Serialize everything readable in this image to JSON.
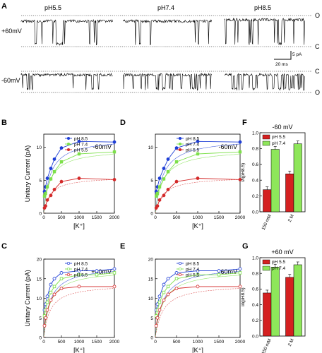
{
  "figure": {
    "panel_letters": [
      "A",
      "B",
      "C",
      "D",
      "E",
      "F",
      "G"
    ]
  },
  "traces": {
    "panel_letter": "A",
    "columns": [
      "pH5.5",
      "pH7.4",
      "pH8.5"
    ],
    "rows": [
      "+60mV",
      "-60mV"
    ],
    "row_state_labels": [
      [
        "O",
        "C"
      ],
      [
        "C",
        "O"
      ]
    ],
    "scalebar": {
      "amplitude": "5 pA",
      "time": "20 ms"
    }
  },
  "chart_data": [
    {
      "panel": "B",
      "type": "scatter",
      "voltage": "-60mV",
      "xlabel": "[K⁺]",
      "ylabel": "Unitary Current (pA)",
      "xlim": [
        0,
        2000
      ],
      "ylim": [
        0,
        12
      ],
      "xticks": [
        "0",
        "500",
        "1000",
        "1500",
        "2000"
      ],
      "yticks": [
        "0",
        "5",
        "10"
      ],
      "legend_position": "top-left",
      "marker": "filled",
      "series": [
        {
          "name": "pH 8.5",
          "color": "#1f3fd6",
          "x": [
            20,
            50,
            100,
            200,
            300,
            500,
            1000,
            2000
          ],
          "y": [
            3.3,
            4.0,
            5.3,
            6.8,
            8.2,
            9.9,
            10.9,
            10.8
          ]
        },
        {
          "name": "pH 7.4",
          "color": "#7de04a",
          "x": [
            20,
            50,
            100,
            200,
            300,
            500,
            1000,
            2000
          ],
          "y": [
            2.6,
            3.0,
            4.0,
            5.2,
            6.3,
            7.8,
            9.0,
            9.3
          ]
        },
        {
          "name": "pH 5.5",
          "color": "#d42a2a",
          "x": [
            20,
            50,
            100,
            200,
            300,
            500,
            1000,
            2000
          ],
          "y": [
            0.8,
            1.1,
            2.0,
            2.7,
            3.6,
            4.8,
            5.3,
            5.1
          ]
        }
      ]
    },
    {
      "panel": "D",
      "type": "scatter",
      "voltage": "-60mV",
      "xlabel": "[K⁺]",
      "ylabel": "",
      "xlim": [
        0,
        2000
      ],
      "ylim": [
        0,
        12
      ],
      "xticks": [
        "0",
        "500",
        "1000",
        "1500",
        "2000"
      ],
      "yticks": [
        "0",
        "5",
        "10"
      ],
      "legend_position": "top-left",
      "marker": "filled",
      "series": [
        {
          "name": "pH 8.5",
          "color": "#1f3fd6",
          "x": [
            20,
            50,
            100,
            200,
            300,
            500,
            1000,
            2000
          ],
          "y": [
            3.3,
            4.0,
            5.3,
            6.8,
            8.2,
            9.9,
            10.9,
            10.8
          ]
        },
        {
          "name": "pH 7.4",
          "color": "#7de04a",
          "x": [
            20,
            50,
            100,
            200,
            300,
            500,
            1000,
            2000
          ],
          "y": [
            2.6,
            3.0,
            4.0,
            5.2,
            6.3,
            7.8,
            9.0,
            9.3
          ]
        },
        {
          "name": "pH 5.5",
          "color": "#d42a2a",
          "x": [
            20,
            50,
            100,
            200,
            300,
            500,
            1000,
            2000
          ],
          "y": [
            0.8,
            1.1,
            2.0,
            2.7,
            3.6,
            4.8,
            5.3,
            5.1
          ]
        }
      ]
    },
    {
      "panel": "C",
      "type": "scatter",
      "voltage": "+60mV",
      "xlabel": "[K⁺]",
      "ylabel": "Unitary Current (pA)",
      "xlim": [
        0,
        2000
      ],
      "ylim": [
        0,
        20
      ],
      "xticks": [
        "0",
        "500",
        "1000",
        "1500",
        "2000"
      ],
      "yticks": [
        "0",
        "5",
        "10",
        "15",
        "20"
      ],
      "legend_position": "top-left",
      "marker": "open",
      "series": [
        {
          "name": "pH 8.5",
          "color": "#1f3fd6",
          "x": [
            20,
            50,
            100,
            200,
            300,
            500,
            1000,
            1500,
            2000
          ],
          "y": [
            7.0,
            8.5,
            10.5,
            13.5,
            15.0,
            16.5,
            17.0,
            17.0,
            17.5
          ]
        },
        {
          "name": "pH 7.4",
          "color": "#7de04a",
          "x": [
            20,
            50,
            100,
            200,
            300,
            500,
            1000,
            1500,
            2000
          ],
          "y": [
            5.5,
            7.0,
            9.0,
            11.5,
            13.0,
            15.0,
            16.0,
            16.0,
            16.5
          ]
        },
        {
          "name": "pH 5.5",
          "color": "#d42a2a",
          "x": [
            20,
            50,
            100,
            200,
            300,
            500,
            1000,
            2000
          ],
          "y": [
            3.0,
            5.0,
            7.0,
            9.5,
            11.0,
            12.5,
            13.0,
            13.0
          ]
        }
      ]
    },
    {
      "panel": "E",
      "type": "scatter",
      "voltage": "+60mV",
      "xlabel": "[K⁺]",
      "ylabel": "",
      "xlim": [
        0,
        2000
      ],
      "ylim": [
        0,
        20
      ],
      "xticks": [
        "0",
        "500",
        "1000",
        "1500",
        "2000"
      ],
      "yticks": [
        "0",
        "5",
        "10",
        "15",
        "20"
      ],
      "legend_position": "top-left",
      "marker": "open",
      "series": [
        {
          "name": "pH 8.5",
          "color": "#1f3fd6",
          "x": [
            20,
            50,
            100,
            200,
            300,
            500,
            1000,
            1500,
            2000
          ],
          "y": [
            7.0,
            8.5,
            10.5,
            13.5,
            15.0,
            16.5,
            17.0,
            17.0,
            17.5
          ]
        },
        {
          "name": "pH 7.4",
          "color": "#7de04a",
          "x": [
            20,
            50,
            100,
            200,
            300,
            500,
            1000,
            1500,
            2000
          ],
          "y": [
            5.5,
            7.0,
            9.0,
            11.5,
            13.0,
            15.0,
            16.0,
            16.0,
            16.5
          ]
        },
        {
          "name": "pH 5.5",
          "color": "#d42a2a",
          "x": [
            20,
            50,
            100,
            200,
            300,
            500,
            1000,
            2000
          ],
          "y": [
            3.0,
            5.0,
            7.0,
            9.5,
            11.0,
            12.5,
            13.0,
            13.0
          ]
        }
      ]
    },
    {
      "panel": "F",
      "type": "bar",
      "title": "-60 mV",
      "ylabel": "i/i(pH8.5)",
      "ylim": [
        0,
        1.0
      ],
      "yticks": [
        "0.0",
        "0.2",
        "0.4",
        "0.6",
        "0.8",
        "1.0"
      ],
      "categories": [
        "150 mM",
        "2 M"
      ],
      "legend_position": "top-left",
      "series": [
        {
          "name": "pH 5.5",
          "color": "#d42020",
          "values": [
            0.28,
            0.48
          ]
        },
        {
          "name": "pH 7.4",
          "color": "#8ee65a",
          "values": [
            0.79,
            0.86
          ]
        }
      ]
    },
    {
      "panel": "G",
      "type": "bar",
      "title": "+60 mV",
      "ylabel": "i/i(pH8.5)",
      "ylim": [
        0,
        1.0
      ],
      "yticks": [
        "0.0",
        "0.2",
        "0.4",
        "0.6",
        "0.8",
        "1.0"
      ],
      "categories": [
        "150 mM",
        "2 M"
      ],
      "legend_position": "top-left",
      "series": [
        {
          "name": "pH 5.5",
          "color": "#d42020",
          "values": [
            0.55,
            0.75
          ]
        },
        {
          "name": "pH 7.4",
          "color": "#8ee65a",
          "values": [
            0.88,
            0.91
          ]
        }
      ]
    }
  ]
}
